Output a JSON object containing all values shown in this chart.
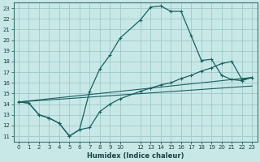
{
  "xlabel": "Humidex (Indice chaleur)",
  "bg_color": "#c8e8e8",
  "line_color": "#1a6060",
  "grid_color": "#a0c8c8",
  "xlim": [
    -0.5,
    23.5
  ],
  "ylim": [
    10.5,
    23.5
  ],
  "xticks": [
    0,
    1,
    2,
    3,
    4,
    5,
    6,
    7,
    8,
    9,
    10,
    12,
    13,
    14,
    15,
    16,
    17,
    18,
    19,
    20,
    21,
    22,
    23
  ],
  "yticks": [
    11,
    12,
    13,
    14,
    15,
    16,
    17,
    18,
    19,
    20,
    21,
    22,
    23
  ],
  "line1_x": [
    0,
    1,
    2,
    3,
    4,
    5,
    6,
    7,
    8,
    9,
    10,
    12,
    13,
    14,
    15,
    16,
    17,
    18,
    19,
    20,
    21,
    22,
    23
  ],
  "line1_y": [
    14.2,
    14.1,
    13.0,
    12.7,
    12.2,
    11.0,
    11.6,
    15.2,
    17.3,
    18.6,
    20.2,
    21.9,
    23.1,
    23.2,
    22.7,
    22.7,
    20.4,
    18.1,
    18.2,
    16.7,
    16.3,
    16.2,
    16.5
  ],
  "line2_x": [
    0,
    1,
    2,
    3,
    4,
    5,
    6,
    7,
    8,
    9,
    10,
    12,
    13,
    14,
    15,
    16,
    17,
    18,
    19,
    20,
    21,
    22,
    23
  ],
  "line2_y": [
    14.2,
    14.1,
    13.0,
    12.7,
    12.2,
    11.0,
    11.6,
    11.8,
    13.3,
    14.0,
    14.5,
    15.2,
    15.5,
    15.8,
    16.0,
    16.4,
    16.7,
    17.1,
    17.4,
    17.8,
    18.0,
    16.3,
    16.5
  ],
  "line3_x": [
    0,
    23
  ],
  "line3_y": [
    14.2,
    16.5
  ],
  "line4_x": [
    0,
    23
  ],
  "line4_y": [
    14.2,
    15.7
  ]
}
